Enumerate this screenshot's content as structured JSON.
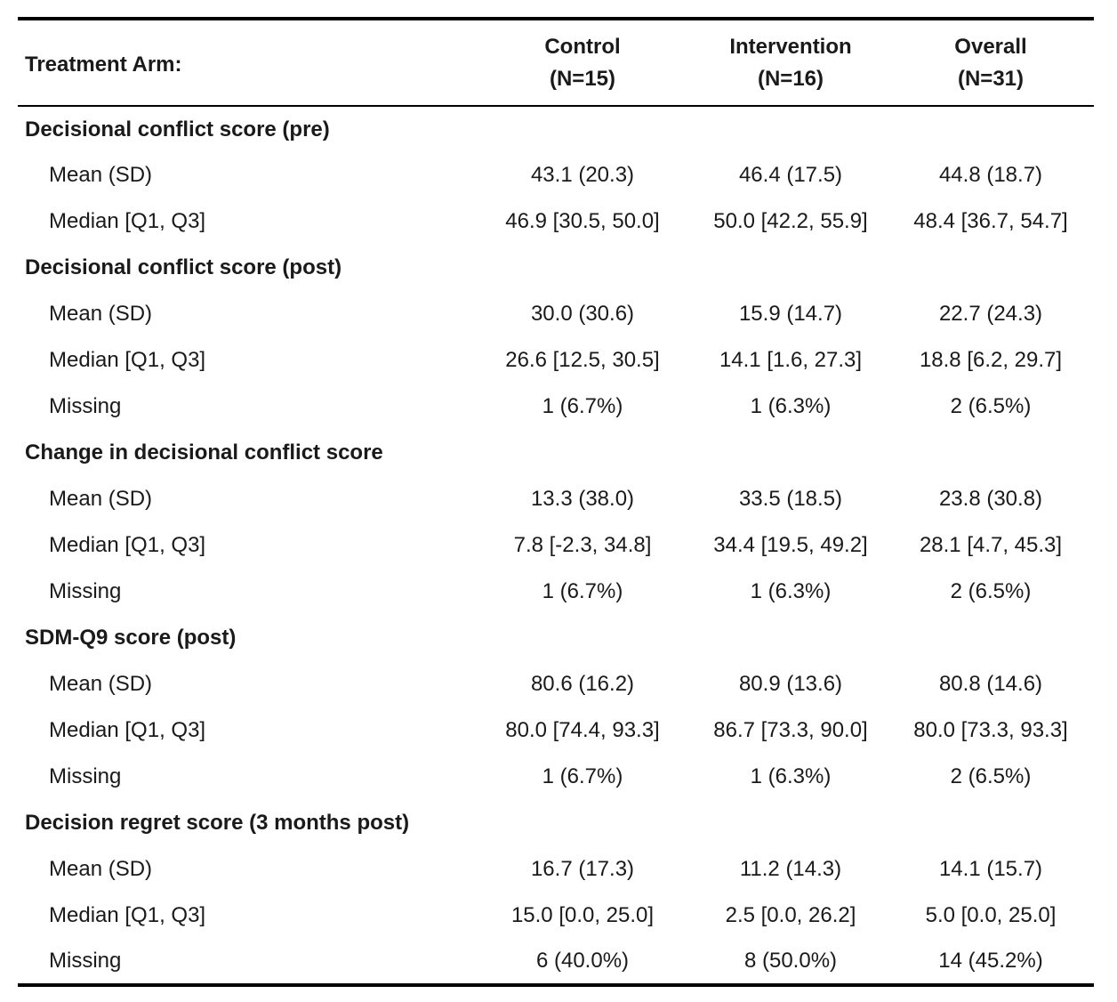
{
  "header": {
    "label": "Treatment Arm:",
    "columns": [
      {
        "name": "Control",
        "n": "(N=15)"
      },
      {
        "name": "Intervention",
        "n": "(N=16)"
      },
      {
        "name": "Overall",
        "n": "(N=31)"
      }
    ]
  },
  "sections": [
    {
      "title": "Decisional conflict score (pre)",
      "rows": [
        {
          "label": "Mean (SD)",
          "values": [
            "43.1 (20.3)",
            "46.4 (17.5)",
            "44.8 (18.7)"
          ]
        },
        {
          "label": "Median [Q1, Q3]",
          "values": [
            "46.9 [30.5, 50.0]",
            "50.0 [42.2, 55.9]",
            "48.4 [36.7, 54.7]"
          ]
        }
      ]
    },
    {
      "title": "Decisional conflict score (post)",
      "rows": [
        {
          "label": "Mean (SD)",
          "values": [
            "30.0 (30.6)",
            "15.9 (14.7)",
            "22.7 (24.3)"
          ]
        },
        {
          "label": "Median [Q1, Q3]",
          "values": [
            "26.6 [12.5, 30.5]",
            "14.1 [1.6, 27.3]",
            "18.8 [6.2, 29.7]"
          ]
        },
        {
          "label": "Missing",
          "values": [
            "1 (6.7%)",
            "1 (6.3%)",
            "2 (6.5%)"
          ]
        }
      ]
    },
    {
      "title": "Change in decisional conflict score",
      "rows": [
        {
          "label": "Mean (SD)",
          "values": [
            "13.3 (38.0)",
            "33.5 (18.5)",
            "23.8 (30.8)"
          ]
        },
        {
          "label": "Median [Q1, Q3]",
          "values": [
            "7.8 [-2.3, 34.8]",
            "34.4 [19.5, 49.2]",
            "28.1 [4.7, 45.3]"
          ]
        },
        {
          "label": "Missing",
          "values": [
            "1 (6.7%)",
            "1 (6.3%)",
            "2 (6.5%)"
          ]
        }
      ]
    },
    {
      "title": "SDM-Q9 score (post)",
      "rows": [
        {
          "label": "Mean (SD)",
          "values": [
            "80.6 (16.2)",
            "80.9 (13.6)",
            "80.8 (14.6)"
          ]
        },
        {
          "label": "Median [Q1, Q3]",
          "values": [
            "80.0 [74.4, 93.3]",
            "86.7 [73.3, 90.0]",
            "80.0 [73.3, 93.3]"
          ]
        },
        {
          "label": "Missing",
          "values": [
            "1 (6.7%)",
            "1 (6.3%)",
            "2 (6.5%)"
          ]
        }
      ]
    },
    {
      "title": "Decision regret score (3 months post)",
      "rows": [
        {
          "label": "Mean (SD)",
          "values": [
            "16.7 (17.3)",
            "11.2 (14.3)",
            "14.1 (15.7)"
          ]
        },
        {
          "label": "Median [Q1, Q3]",
          "values": [
            "15.0 [0.0, 25.0]",
            "2.5 [0.0, 26.2]",
            "5.0 [0.0, 25.0]"
          ]
        },
        {
          "label": "Missing",
          "values": [
            "6 (40.0%)",
            "8 (50.0%)",
            "14 (45.2%)"
          ]
        }
      ]
    }
  ]
}
